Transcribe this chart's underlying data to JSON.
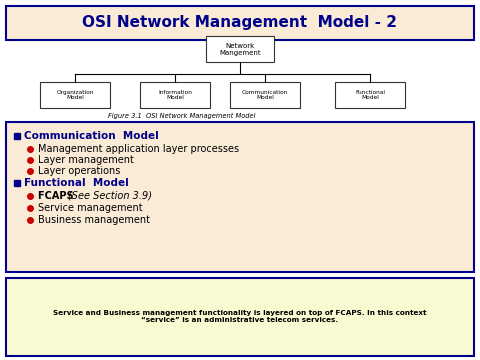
{
  "title": "OSI Network Management  Model - 2",
  "title_bg": "#FAEBD7",
  "title_color": "#00008B",
  "title_border": "#00008B",
  "tree_top_box": "Network\nMangement",
  "tree_children": [
    "Organization\nModel",
    "Information\nModel",
    "Communication\nModel",
    "Functional\nModel"
  ],
  "figure_caption": "Figure 3.1  OSI Network Management Model",
  "bullet_box_bg": "#FAEBD7",
  "bullet_box_border": "#00008B",
  "section1_header": "Communication  Model",
  "section1_items": [
    "Management application layer processes",
    "Layer management",
    "Layer operations"
  ],
  "section2_header": "Functional  Model",
  "section2_fcaps": "FCAPS  ",
  "section2_fcaps_italic": "(See Section 3.9)",
  "section2_items": [
    "Service management",
    "Business management"
  ],
  "footer_text": "Service and Business management functionality is layered on top of FCAPS. In this context\n“service” is an administrative telecom services.",
  "footer_bg": "#FAFAD2",
  "footer_border": "#00008B",
  "dark_blue": "#00008B",
  "red": "#CC0000",
  "box_color": "#FFFFFF",
  "box_border": "#333333",
  "white_bg": "#FFFFFF"
}
